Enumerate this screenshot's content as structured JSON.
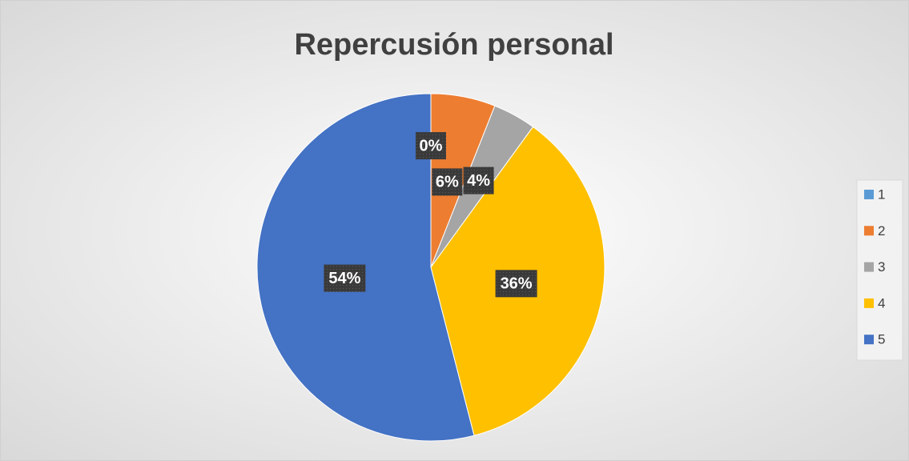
{
  "chart_data": {
    "type": "pie",
    "title": "Repercusión personal",
    "categories": [
      "1",
      "2",
      "3",
      "4",
      "5"
    ],
    "values": [
      0,
      6,
      4,
      36,
      54
    ],
    "value_labels": [
      "0%",
      "6%",
      "4%",
      "36%",
      "54%"
    ],
    "colors": [
      "#5b9bd5",
      "#ed7d31",
      "#a5a5a5",
      "#ffc000",
      "#4472c4"
    ],
    "legend": "right"
  }
}
